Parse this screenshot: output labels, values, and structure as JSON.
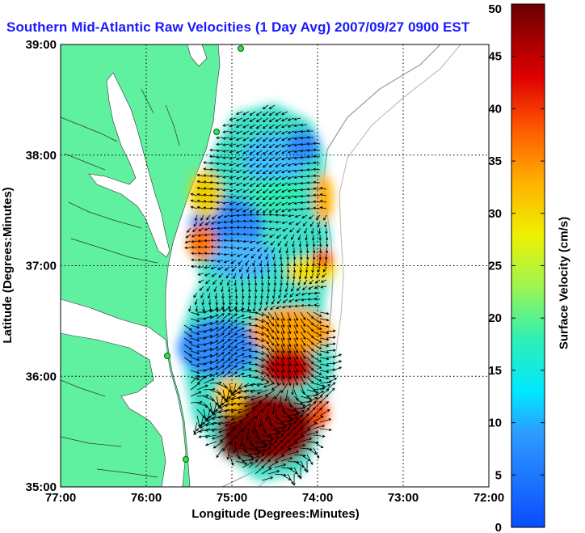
{
  "title": "Southern Mid-Atlantic Raw Velocities (1 Day Avg) 2007/09/27 0900 EST",
  "map": {
    "x_label": "Longitude (Degrees:Minutes)",
    "y_label": "Latitude (Degrees:Minutes)",
    "x_ticks": [
      "77:00",
      "76:00",
      "75:00",
      "74:00",
      "73:00",
      "72:00"
    ],
    "y_ticks": [
      "39:00",
      "38:00",
      "37:00",
      "36:00",
      "35:00"
    ],
    "lon_range": [
      -77,
      -72
    ],
    "lat_range": [
      35,
      39
    ],
    "land_color": "#5ff0a0",
    "colorbar": {
      "label": "Surface Velocity (cm/s)",
      "ticks": [
        "0",
        "5",
        "10",
        "15",
        "20",
        "25",
        "30",
        "35",
        "40",
        "45",
        "50"
      ],
      "range": [
        0,
        50
      ]
    }
  }
}
